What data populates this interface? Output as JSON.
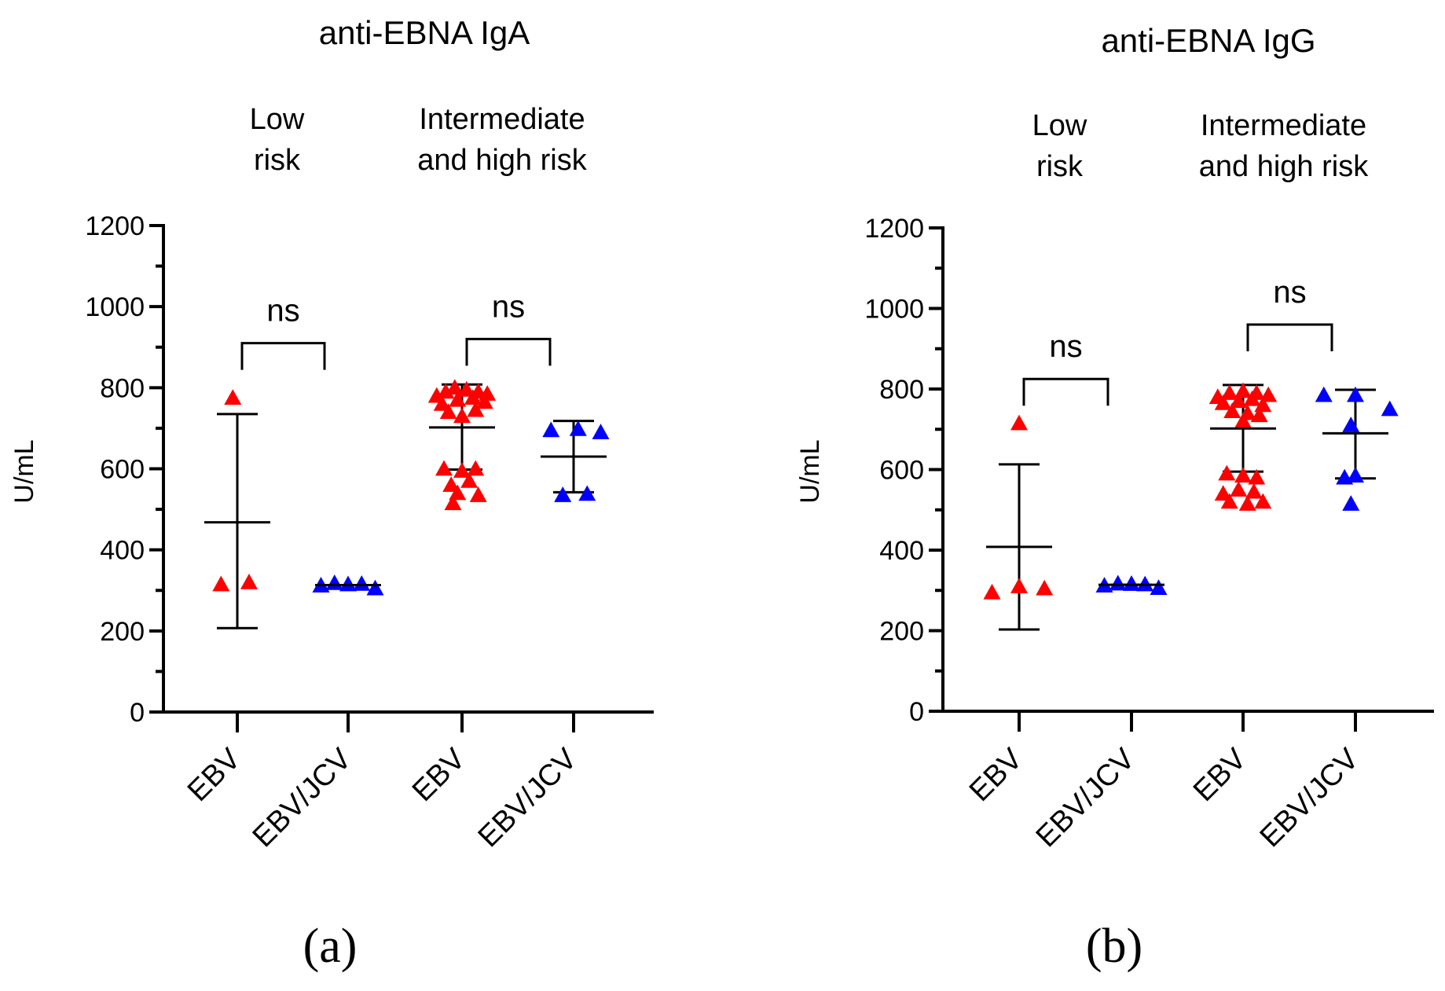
{
  "panels": [
    {
      "letter": "(a)",
      "chart_data": {
        "type": "scatter",
        "title": "anti-EBNA IgA",
        "ylabel": "U/mL",
        "xlabel": "",
        "ylim": [
          0,
          1200
        ],
        "y_ticks": [
          "0",
          "200",
          "400",
          "600",
          "800",
          "1000",
          "1200"
        ],
        "y_tick_values": [
          0,
          200,
          400,
          600,
          800,
          1000,
          1200
        ],
        "categories": [
          "EBV",
          "EBV/JCV",
          "EBV",
          "EBV/JCV"
        ],
        "risk_groups": [
          {
            "label_lines": [
              "Low",
              "risk"
            ],
            "categories": [
              0,
              1
            ]
          },
          {
            "label_lines": [
              "Intermediate",
              "and high risk"
            ],
            "categories": [
              2,
              3
            ]
          }
        ],
        "comparisons": [
          {
            "from": 0,
            "to": 1,
            "label": "ns",
            "bracket_y": 910
          },
          {
            "from": 2,
            "to": 3,
            "label": "ns",
            "bracket_y": 920
          }
        ],
        "series": [
          {
            "name": "EBV",
            "category": 0,
            "color": "#ff0000",
            "mean": 468,
            "sd_low": 207,
            "sd_high": 735,
            "points": [
              [
                -0.05,
                775
              ],
              [
                -0.18,
                315
              ],
              [
                0.13,
                320
              ]
            ]
          },
          {
            "name": "EBV/JCV",
            "category": 1,
            "color": "#0000ff",
            "mean": 313,
            "sd_low": 313,
            "sd_high": 313,
            "points": [
              [
                -0.3,
                312
              ],
              [
                -0.15,
                318
              ],
              [
                0.0,
                315
              ],
              [
                0.15,
                316
              ],
              [
                0.3,
                305
              ]
            ]
          },
          {
            "name": "EBV",
            "category": 2,
            "color": "#ff0000",
            "mean": 702,
            "sd_low": 598,
            "sd_high": 808,
            "points": [
              [
                -0.28,
                780
              ],
              [
                -0.18,
                790
              ],
              [
                -0.08,
                800
              ],
              [
                0.05,
                795
              ],
              [
                0.18,
                790
              ],
              [
                0.28,
                785
              ],
              [
                -0.22,
                760
              ],
              [
                -0.05,
                770
              ],
              [
                0.12,
                775
              ],
              [
                0.25,
                765
              ],
              [
                -0.15,
                740
              ],
              [
                0.15,
                745
              ],
              [
                0.0,
                730
              ],
              [
                -0.2,
                600
              ],
              [
                0.0,
                595
              ],
              [
                0.15,
                600
              ],
              [
                -0.12,
                560
              ],
              [
                0.08,
                570
              ],
              [
                -0.05,
                540
              ],
              [
                0.18,
                535
              ],
              [
                -0.1,
                515
              ]
            ]
          },
          {
            "name": "EBV/JCV",
            "category": 3,
            "color": "#0000ff",
            "mean": 630,
            "sd_low": 542,
            "sd_high": 718,
            "points": [
              [
                -0.25,
                695
              ],
              [
                0.05,
                698
              ],
              [
                0.3,
                690
              ],
              [
                -0.12,
                535
              ],
              [
                0.15,
                538
              ]
            ]
          }
        ]
      }
    },
    {
      "letter": "(b)",
      "chart_data": {
        "type": "scatter",
        "title": "anti-EBNA IgG",
        "ylabel": "U/mL",
        "xlabel": "",
        "ylim": [
          0,
          1200
        ],
        "y_ticks": [
          "0",
          "200",
          "400",
          "600",
          "800",
          "1000",
          "1200"
        ],
        "y_tick_values": [
          0,
          200,
          400,
          600,
          800,
          1000,
          1200
        ],
        "categories": [
          "EBV",
          "EBV/JCV",
          "EBV",
          "EBV/JCV"
        ],
        "risk_groups": [
          {
            "label_lines": [
              "Low",
              "risk"
            ],
            "categories": [
              0,
              1
            ]
          },
          {
            "label_lines": [
              "Intermediate",
              "and high risk"
            ],
            "categories": [
              2,
              3
            ]
          }
        ],
        "comparisons": [
          {
            "from": 0,
            "to": 1,
            "label": "ns",
            "bracket_y": 825
          },
          {
            "from": 2,
            "to": 3,
            "label": "ns",
            "bracket_y": 960
          }
        ],
        "series": [
          {
            "name": "EBV",
            "category": 0,
            "color": "#ff0000",
            "mean": 408,
            "sd_low": 203,
            "sd_high": 613,
            "points": [
              [
                0.0,
                715
              ],
              [
                -0.3,
                295
              ],
              [
                0.0,
                310
              ],
              [
                0.28,
                305
              ]
            ]
          },
          {
            "name": "EBV/JCV",
            "category": 1,
            "color": "#0000ff",
            "mean": 314,
            "sd_low": 314,
            "sd_high": 314,
            "points": [
              [
                -0.3,
                312
              ],
              [
                -0.15,
                317
              ],
              [
                0.0,
                316
              ],
              [
                0.15,
                315
              ],
              [
                0.3,
                306
              ]
            ]
          },
          {
            "name": "EBV",
            "category": 2,
            "color": "#ff0000",
            "mean": 702,
            "sd_low": 595,
            "sd_high": 810,
            "points": [
              [
                -0.28,
                780
              ],
              [
                -0.15,
                790
              ],
              [
                0.0,
                795
              ],
              [
                0.15,
                790
              ],
              [
                0.28,
                785
              ],
              [
                -0.22,
                765
              ],
              [
                -0.05,
                770
              ],
              [
                0.1,
                775
              ],
              [
                0.22,
                760
              ],
              [
                -0.12,
                745
              ],
              [
                0.05,
                740
              ],
              [
                0.18,
                735
              ],
              [
                0.0,
                720
              ],
              [
                -0.18,
                590
              ],
              [
                0.0,
                585
              ],
              [
                0.15,
                580
              ],
              [
                -0.22,
                540
              ],
              [
                -0.05,
                550
              ],
              [
                0.12,
                545
              ],
              [
                -0.15,
                520
              ],
              [
                0.05,
                515
              ],
              [
                0.22,
                520
              ]
            ]
          },
          {
            "name": "EBV/JCV",
            "category": 3,
            "color": "#0000ff",
            "mean": 690,
            "sd_low": 578,
            "sd_high": 798,
            "points": [
              [
                -0.35,
                785
              ],
              [
                0.0,
                785
              ],
              [
                0.38,
                750
              ],
              [
                -0.05,
                710
              ],
              [
                -0.12,
                580
              ],
              [
                0.0,
                585
              ],
              [
                -0.05,
                515
              ]
            ]
          }
        ]
      }
    }
  ]
}
